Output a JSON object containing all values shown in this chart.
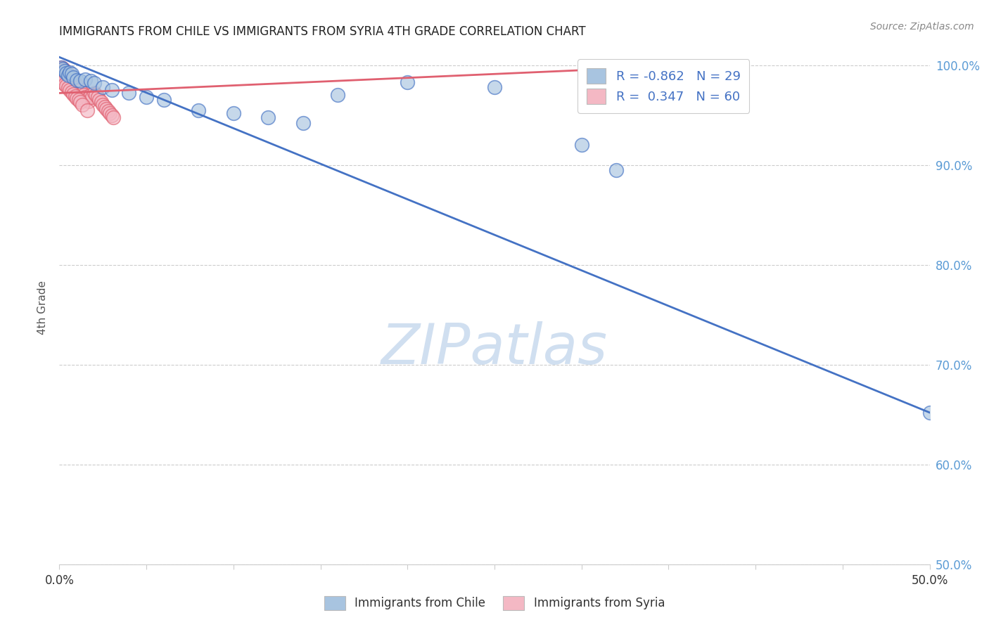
{
  "title": "IMMIGRANTS FROM CHILE VS IMMIGRANTS FROM SYRIA 4TH GRADE CORRELATION CHART",
  "source": "Source: ZipAtlas.com",
  "ylabel": "4th Grade",
  "xmin": 0.0,
  "xmax": 0.5,
  "ymin": 0.5,
  "ymax": 1.015,
  "yticks": [
    0.5,
    0.6,
    0.7,
    0.8,
    0.9,
    1.0
  ],
  "ytick_labels": [
    "50.0%",
    "60.0%",
    "70.0%",
    "80.0%",
    "90.0%",
    "100.0%"
  ],
  "legend_blue_label": "R = -0.862   N = 29",
  "legend_pink_label": "R =  0.347   N = 60",
  "legend_blue_color": "#a8c4e0",
  "legend_pink_color": "#f4b8c4",
  "blue_scatter_color": "#a8c4e0",
  "pink_scatter_color": "#f4b8c4",
  "blue_line_color": "#4472c4",
  "pink_line_color": "#e06070",
  "watermark": "ZIPatlas",
  "watermark_color": "#d0dff0",
  "grid_color": "#cccccc",
  "title_color": "#222222",
  "axis_label_color": "#555555",
  "right_axis_color": "#5b9bd5",
  "blue_scatter_x": [
    0.001,
    0.002,
    0.003,
    0.004,
    0.005,
    0.006,
    0.007,
    0.008,
    0.01,
    0.012,
    0.015,
    0.018,
    0.02,
    0.025,
    0.03,
    0.04,
    0.05,
    0.06,
    0.08,
    0.1,
    0.12,
    0.14,
    0.16,
    0.2,
    0.25,
    0.3,
    0.32,
    0.34,
    0.5
  ],
  "blue_scatter_y": [
    0.998,
    0.996,
    0.994,
    0.992,
    0.99,
    0.993,
    0.991,
    0.988,
    0.985,
    0.984,
    0.986,
    0.984,
    0.982,
    0.978,
    0.975,
    0.972,
    0.968,
    0.965,
    0.955,
    0.952,
    0.948,
    0.942,
    0.97,
    0.983,
    0.978,
    0.92,
    0.895,
    0.998,
    0.652
  ],
  "pink_scatter_x": [
    0.001,
    0.001,
    0.001,
    0.001,
    0.001,
    0.002,
    0.002,
    0.002,
    0.003,
    0.003,
    0.003,
    0.004,
    0.004,
    0.005,
    0.005,
    0.006,
    0.006,
    0.007,
    0.007,
    0.008,
    0.008,
    0.009,
    0.01,
    0.01,
    0.011,
    0.012,
    0.013,
    0.014,
    0.015,
    0.016,
    0.017,
    0.018,
    0.019,
    0.02,
    0.021,
    0.022,
    0.023,
    0.024,
    0.025,
    0.026,
    0.027,
    0.028,
    0.029,
    0.03,
    0.031,
    0.001,
    0.002,
    0.003,
    0.004,
    0.005,
    0.006,
    0.007,
    0.008,
    0.009,
    0.01,
    0.011,
    0.012,
    0.013,
    0.34,
    0.016
  ],
  "pink_scatter_y": [
    0.998,
    0.996,
    0.993,
    0.991,
    0.988,
    0.997,
    0.994,
    0.99,
    0.995,
    0.992,
    0.988,
    0.993,
    0.989,
    0.991,
    0.987,
    0.988,
    0.984,
    0.986,
    0.982,
    0.984,
    0.98,
    0.982,
    0.98,
    0.977,
    0.978,
    0.975,
    0.972,
    0.97,
    0.968,
    0.966,
    0.964,
    0.97,
    0.968,
    0.972,
    0.97,
    0.968,
    0.965,
    0.963,
    0.96,
    0.958,
    0.956,
    0.954,
    0.952,
    0.95,
    0.948,
    0.985,
    0.983,
    0.981,
    0.979,
    0.977,
    0.975,
    0.973,
    0.971,
    0.969,
    0.967,
    0.965,
    0.963,
    0.96,
    0.998,
    0.955
  ],
  "blue_line_x": [
    0.0,
    0.5
  ],
  "blue_line_y": [
    1.008,
    0.652
  ],
  "pink_line_x": [
    0.0,
    0.34
  ],
  "pink_line_y": [
    0.972,
    0.998
  ]
}
